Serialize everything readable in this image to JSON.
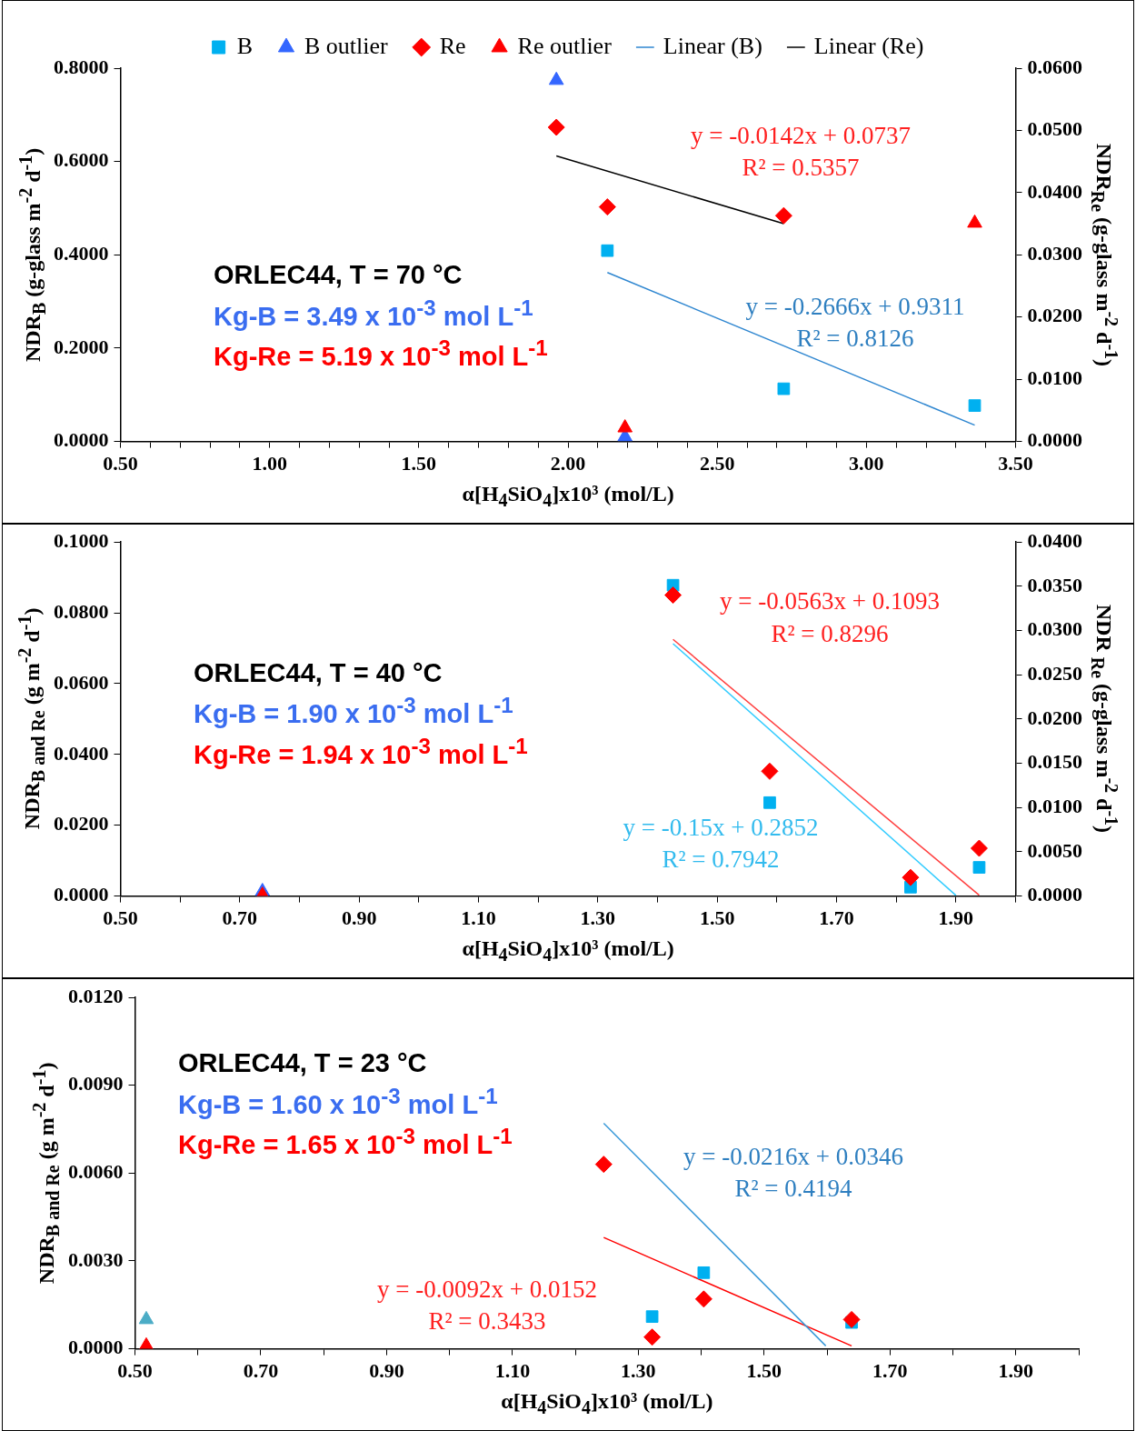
{
  "chart_data": [
    {
      "type": "scatter",
      "legend": "top",
      "xlabel": "α[H$_{4}$SiO$_{4}$]x10³ (mol/L)",
      "ylabel": "NDR$_{B}$ (g-glass m$^{-2}$ d$^{-1}$)",
      "y2label": "NDR$_{Re}$ (g-glass m$^{-2}$ d$^{-1}$)",
      "xlim": [
        0.5,
        3.5
      ],
      "xticks": [
        {
          "value": 0.5,
          "label": "0.50"
        },
        {
          "value": 0.6,
          "label": null
        },
        {
          "value": 0.7,
          "label": null
        },
        {
          "value": 0.8,
          "label": null
        },
        {
          "value": 0.9,
          "label": null
        },
        {
          "value": 1.0,
          "label": "1.00"
        },
        {
          "value": 1.1,
          "label": null
        },
        {
          "value": 1.2,
          "label": null
        },
        {
          "value": 1.3,
          "label": null
        },
        {
          "value": 1.4,
          "label": null
        },
        {
          "value": 1.5,
          "label": "1.50"
        },
        {
          "value": 1.6,
          "label": null
        },
        {
          "value": 1.7,
          "label": null
        },
        {
          "value": 1.8,
          "label": null
        },
        {
          "value": 1.9,
          "label": null
        },
        {
          "value": 2.0,
          "label": "2.00"
        },
        {
          "value": 2.1,
          "label": null
        },
        {
          "value": 2.2,
          "label": null
        },
        {
          "value": 2.3,
          "label": null
        },
        {
          "value": 2.4,
          "label": null
        },
        {
          "value": 2.5,
          "label": "2.50"
        },
        {
          "value": 2.6,
          "label": null
        },
        {
          "value": 2.7,
          "label": null
        },
        {
          "value": 2.8,
          "label": null
        },
        {
          "value": 2.9,
          "label": null
        },
        {
          "value": 3.0,
          "label": "3.00"
        },
        {
          "value": 3.1,
          "label": null
        },
        {
          "value": 3.2,
          "label": null
        },
        {
          "value": 3.3,
          "label": null
        },
        {
          "value": 3.4,
          "label": null
        },
        {
          "value": 3.5,
          "label": "3.50"
        }
      ],
      "ylim": [
        0,
        0.8
      ],
      "yticks": [
        {
          "value": 0,
          "label": "0.0000"
        },
        {
          "value": 0.2,
          "label": "0.2000"
        },
        {
          "value": 0.4,
          "label": "0.4000"
        },
        {
          "value": 0.6,
          "label": "0.6000"
        },
        {
          "value": 0.8,
          "label": "0.8000"
        }
      ],
      "y2lim": [
        0,
        0.06
      ],
      "y2ticks": [
        {
          "value": 0,
          "label": "0.0000"
        },
        {
          "value": 0.01,
          "label": "0.0100"
        },
        {
          "value": 0.02,
          "label": "0.0200"
        },
        {
          "value": 0.03,
          "label": "0.0300"
        },
        {
          "value": 0.04,
          "label": "0.0400"
        },
        {
          "value": 0.05,
          "label": "0.0500"
        },
        {
          "value": 0.06,
          "label": "0.0600"
        }
      ],
      "series": [
        {
          "name": "B",
          "type": "scatter",
          "marker": "square",
          "color": "#00b0f0",
          "x": [
            2.132,
            2.723,
            3.363
          ],
          "values": [
            0.409,
            0.113,
            0.077
          ]
        },
        {
          "name": "B outlier",
          "type": "scatter",
          "marker": "triangle",
          "color": "#3366ff",
          "x": [
            1.961,
            2.191
          ],
          "values": [
            0.774,
            0.01
          ]
        },
        {
          "name": "Re",
          "type": "scatter",
          "marker": "diamond",
          "color": "#ff0000",
          "axis": "y2",
          "x": [
            1.961,
            2.132,
            2.723
          ],
          "values": [
            0.0505,
            0.0377,
            0.0363
          ]
        },
        {
          "name": "Re outlier",
          "type": "scatter",
          "marker": "triangle",
          "color": "#ff0000",
          "axis": "y2",
          "x": [
            3.363,
            2.191
          ],
          "values": [
            0.0351,
            0.0022
          ]
        },
        {
          "name": "Linear (B)",
          "type": "line",
          "marker": "none",
          "color": "#2e86d0",
          "x": [
            2.132,
            3.363
          ],
          "values": [
            0.362,
            0.035
          ]
        },
        {
          "name": "Linear (Re)",
          "type": "line",
          "marker": "none",
          "color": "#000000",
          "axis": "y2",
          "x": [
            1.961,
            2.723
          ],
          "values": [
            0.0459,
            0.035
          ]
        }
      ],
      "annotations": [
        "ORLEC44, T = 70 °C",
        "Kg-B =  3.49 x 10$^{-3}$ mol L$^{-1}$",
        "Kg-Re = 5.19 x 10$^{-3}$  mol L$^{-1}$",
        "y = -0.0142x + 0.0737",
        "R² = 0.5357",
        "y = -0.2666x + 0.9311",
        "R² = 0.8126"
      ]
    },
    {
      "type": "scatter",
      "xlabel": "α[H$_{4}$SiO$_{4}$]x10³ (mol/L)",
      "ylabel": "NDR$_{B and Re}$ (g m$^{-2}$ d$^{-1}$)",
      "y2label": "NDR $_{Re}$ (g-glass m$^{-2}$ d$^{-1}$)",
      "xlim": [
        0.5,
        2.0
      ],
      "xticks": [
        {
          "value": 0.5,
          "label": "0.50"
        },
        {
          "value": 0.6,
          "label": null
        },
        {
          "value": 0.7,
          "label": "0.70"
        },
        {
          "value": 0.8,
          "label": null
        },
        {
          "value": 0.9,
          "label": "0.90"
        },
        {
          "value": 1.0,
          "label": null
        },
        {
          "value": 1.1,
          "label": "1.10"
        },
        {
          "value": 1.2,
          "label": null
        },
        {
          "value": 1.3,
          "label": "1.30"
        },
        {
          "value": 1.4,
          "label": null
        },
        {
          "value": 1.5,
          "label": "1.50"
        },
        {
          "value": 1.6,
          "label": null
        },
        {
          "value": 1.7,
          "label": "1.70"
        },
        {
          "value": 1.8,
          "label": null
        },
        {
          "value": 1.9,
          "label": "1.90"
        },
        {
          "value": 2.0,
          "label": null
        }
      ],
      "ylim": [
        0,
        0.1
      ],
      "yticks": [
        {
          "value": 0,
          "label": "0.0000"
        },
        {
          "value": 0.02,
          "label": "0.0200"
        },
        {
          "value": 0.04,
          "label": "0.0400"
        },
        {
          "value": 0.06,
          "label": "0.0600"
        },
        {
          "value": 0.08,
          "label": "0.0800"
        },
        {
          "value": 0.1,
          "label": "0.1000"
        }
      ],
      "y2lim": [
        0,
        0.04
      ],
      "y2ticks": [
        {
          "value": 0,
          "label": "0.0000"
        },
        {
          "value": 0.005,
          "label": "0.0050"
        },
        {
          "value": 0.01,
          "label": "0.0100"
        },
        {
          "value": 0.015,
          "label": "0.0150"
        },
        {
          "value": 0.02,
          "label": "0.0200"
        },
        {
          "value": 0.025,
          "label": "0.0250"
        },
        {
          "value": 0.03,
          "label": "0.0300"
        },
        {
          "value": 0.035,
          "label": "0.0350"
        },
        {
          "value": 0.04,
          "label": "0.0400"
        }
      ],
      "series": [
        {
          "type": "scatter",
          "marker": "square",
          "color": "#00b0f0",
          "x": [
            1.426,
            1.588,
            1.824,
            1.939
          ],
          "values": [
            0.0878,
            0.0264,
            0.0025,
            0.0081
          ]
        },
        {
          "type": "scatter",
          "marker": "triangle",
          "color": "#3366ff",
          "x": [
            0.738
          ],
          "values": [
            0.0013
          ]
        },
        {
          "type": "scatter",
          "marker": "diamond",
          "color": "#ff0000",
          "axis": "y2",
          "x": [
            1.426,
            1.588,
            1.824,
            1.939
          ],
          "values": [
            0.034,
            0.0141,
            0.0021,
            0.0054
          ]
        },
        {
          "type": "scatter",
          "marker": "triangle",
          "color": "#ff0000",
          "axis": "y2",
          "x": [
            0.738
          ],
          "values": [
            0.0001
          ]
        },
        {
          "type": "line",
          "marker": "none",
          "color": "#33ccff",
          "x": [
            1.426,
            1.9
          ],
          "values": [
            0.0713,
            0.0002
          ]
        },
        {
          "type": "line",
          "marker": "none",
          "color": "#ff4040",
          "axis": "y2",
          "x": [
            1.426,
            1.939
          ],
          "values": [
            0.029,
            0.0001
          ]
        }
      ],
      "annotations": [
        "ORLEC44, T = 40 °C",
        "Kg-B =  1.90 x 10$^{-3}$ mol L$^{-1}$",
        "Kg-Re = 1.94 x 10$^{-3}$  mol L$^{-1}$",
        "y = -0.0563x + 0.1093",
        "R² = 0.8296",
        "y = -0.15x + 0.2852",
        "R² = 0.7942"
      ]
    },
    {
      "type": "scatter",
      "xlabel": "α[H$_{4}$SiO$_{4}$]x10³ (mol/L)",
      "ylabel": "NDR$_{B and Re}$ (g m$^{-2}$ d$^{-1}$)",
      "xlim": [
        0.5,
        2.0
      ],
      "xticks": [
        {
          "value": 0.5,
          "label": "0.50"
        },
        {
          "value": 0.6,
          "label": null
        },
        {
          "value": 0.7,
          "label": "0.70"
        },
        {
          "value": 0.8,
          "label": null
        },
        {
          "value": 0.9,
          "label": "0.90"
        },
        {
          "value": 1.0,
          "label": null
        },
        {
          "value": 1.1,
          "label": "1.10"
        },
        {
          "value": 1.2,
          "label": null
        },
        {
          "value": 1.3,
          "label": "1.30"
        },
        {
          "value": 1.4,
          "label": null
        },
        {
          "value": 1.5,
          "label": "1.50"
        },
        {
          "value": 1.6,
          "label": null
        },
        {
          "value": 1.7,
          "label": "1.70"
        },
        {
          "value": 1.8,
          "label": null
        },
        {
          "value": 1.9,
          "label": "1.90"
        },
        {
          "value": 2.0,
          "label": null
        }
      ],
      "ylim": [
        0,
        0.012
      ],
      "yticks": [
        {
          "value": 0,
          "label": "0.0000"
        },
        {
          "value": 0.003,
          "label": "0.0030"
        },
        {
          "value": 0.006,
          "label": "0.0060"
        },
        {
          "value": 0.009,
          "label": "0.0090"
        },
        {
          "value": 0.012,
          "label": "0.0120"
        }
      ],
      "series": [
        {
          "type": "scatter",
          "marker": "square",
          "color": "#00b0f0",
          "x": [
            1.322,
            1.404,
            1.639
          ],
          "values": [
            0.0011,
            0.0026,
            0.0009
          ]
        },
        {
          "type": "scatter",
          "marker": "triangle",
          "color": "#4bacc6",
          "x": [
            0.518
          ],
          "values": [
            0.001
          ]
        },
        {
          "type": "scatter",
          "marker": "diamond",
          "color": "#ff0000",
          "x": [
            1.245,
            1.322,
            1.404,
            1.639
          ],
          "values": [
            0.0063,
            0.0004,
            0.0017,
            0.001
          ]
        },
        {
          "type": "scatter",
          "marker": "triangle",
          "color": "#ff0000",
          "x": [
            0.518
          ],
          "values": [
            0.0001
          ]
        },
        {
          "type": "line",
          "marker": "none",
          "color": "#3a9ad9",
          "x": [
            1.245,
            1.598
          ],
          "values": [
            0.0077,
            0.0001
          ]
        },
        {
          "type": "line",
          "marker": "none",
          "color": "#ff0000",
          "x": [
            1.245,
            1.639
          ],
          "values": [
            0.0038,
            0.0001
          ]
        }
      ],
      "annotations": [
        "ORLEC44, T = 23 °C",
        "Kg-B =  1.60 x 10$^{-3}$ mol L$^{-1}$",
        "Kg-Re = 1.65 x 10$^{-3}$  mol L$^{-1}$",
        "y = -0.0216x + 0.0346",
        "R² = 0.4194",
        "y = -0.0092x + 0.0152",
        "R² = 0.3433"
      ]
    }
  ]
}
